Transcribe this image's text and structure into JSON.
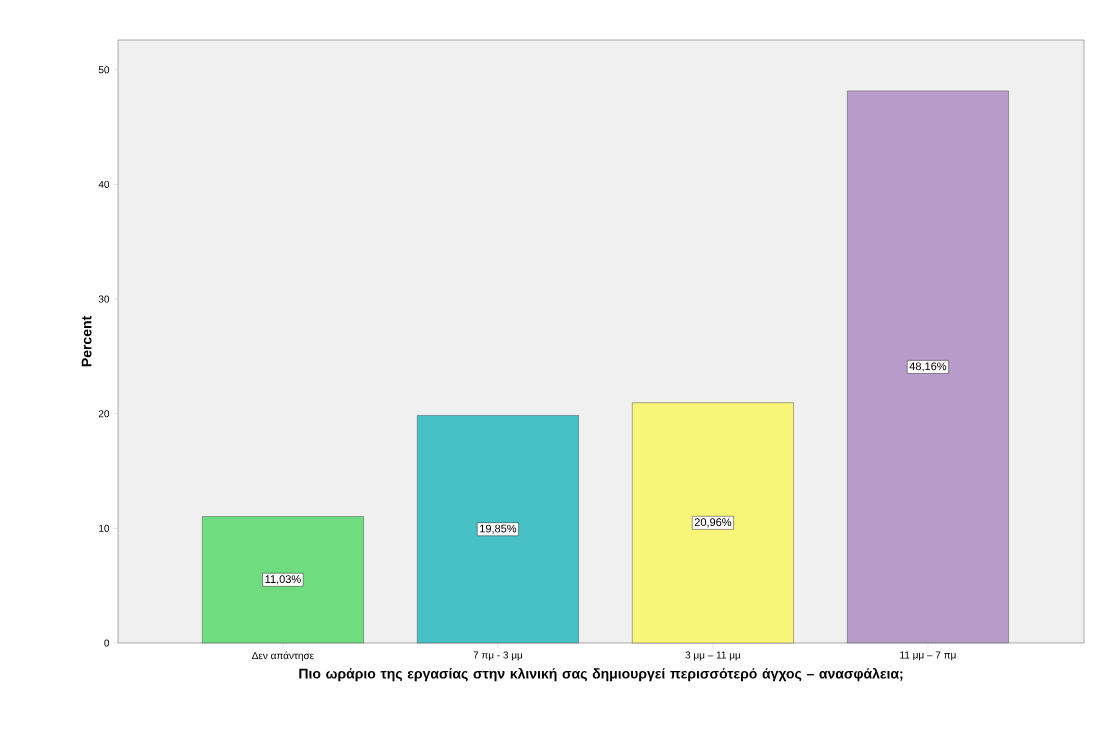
{
  "chart_data": {
    "type": "bar",
    "categories": [
      "Δεν απάντησε",
      "7 πμ - 3 μμ",
      "3 μμ – 11 μμ",
      "11 μμ – 7 πμ"
    ],
    "values": [
      11.03,
      19.85,
      20.96,
      48.16
    ],
    "colors": [
      "#70dc82",
      "#48c1c6",
      "#f8f578",
      "#b89bc9"
    ],
    "value_labels": [
      "11,03%",
      "19,85%",
      "20,96%",
      "48,16%"
    ],
    "ylim": [
      0,
      52.6
    ],
    "yticks": [
      0,
      10,
      20,
      30,
      40,
      50
    ],
    "xlabel": "Πιο ωράριο της εργασίας στην κλινική σας δημιουργεί περισσότερό άγχος – ανασφάλεια;",
    "ylabel": "Percent"
  }
}
